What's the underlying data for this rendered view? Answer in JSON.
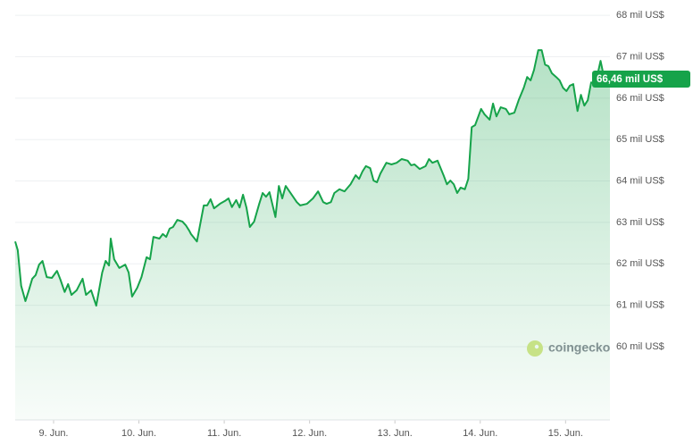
{
  "chart_data": {
    "type": "line",
    "color": "#16a34a",
    "grid": true,
    "watermark": "coingecko",
    "xlim": [
      8.55,
      15.52
    ],
    "ylim": [
      58.23,
      68.37
    ],
    "xticks": [
      {
        "value": 9,
        "label": "9. Jun."
      },
      {
        "value": 10,
        "label": "10. Jun."
      },
      {
        "value": 11,
        "label": "11. Jun."
      },
      {
        "value": 12,
        "label": "12. Jun."
      },
      {
        "value": 13,
        "label": "13. Jun."
      },
      {
        "value": 14,
        "label": "14. Jun."
      },
      {
        "value": 15,
        "label": "15. Jun."
      }
    ],
    "yticks": [
      {
        "value": 60,
        "label": "60 mil US$"
      },
      {
        "value": 61,
        "label": "61 mil US$"
      },
      {
        "value": 62,
        "label": "62 mil US$"
      },
      {
        "value": 63,
        "label": "63 mil US$"
      },
      {
        "value": 64,
        "label": "64 mil US$"
      },
      {
        "value": 65,
        "label": "65 mil US$"
      },
      {
        "value": 66,
        "label": "66 mil US$"
      },
      {
        "value": 67,
        "label": "67 mil US$"
      },
      {
        "value": 68,
        "label": "68 mil US$"
      }
    ],
    "last_price": {
      "value": 66.46,
      "label": "66,46 mil US$"
    },
    "x": [
      8.55,
      8.58,
      8.62,
      8.67,
      8.71,
      8.75,
      8.79,
      8.83,
      8.87,
      8.92,
      8.98,
      9.04,
      9.08,
      9.13,
      9.17,
      9.21,
      9.27,
      9.34,
      9.38,
      9.44,
      9.5,
      9.57,
      9.61,
      9.65,
      9.67,
      9.71,
      9.77,
      9.84,
      9.88,
      9.92,
      9.98,
      10.03,
      10.09,
      10.13,
      10.17,
      10.24,
      10.28,
      10.32,
      10.36,
      10.4,
      10.45,
      10.51,
      10.55,
      10.59,
      10.61,
      10.68,
      10.76,
      10.8,
      10.84,
      10.88,
      10.95,
      11.01,
      11.05,
      11.09,
      11.14,
      11.18,
      11.22,
      11.26,
      11.3,
      11.35,
      11.41,
      11.45,
      11.49,
      11.53,
      11.6,
      11.64,
      11.68,
      11.72,
      11.79,
      11.85,
      11.89,
      11.97,
      12.04,
      12.1,
      12.16,
      12.2,
      12.25,
      12.29,
      12.35,
      12.41,
      12.48,
      12.54,
      12.58,
      12.62,
      12.66,
      12.71,
      12.75,
      12.79,
      12.83,
      12.9,
      12.96,
      13.02,
      13.08,
      13.15,
      13.19,
      13.23,
      13.29,
      13.36,
      13.4,
      13.44,
      13.5,
      13.57,
      13.61,
      13.65,
      13.69,
      13.73,
      13.77,
      13.82,
      13.86,
      13.9,
      13.94,
      14.01,
      14.05,
      14.11,
      14.15,
      14.19,
      14.24,
      14.3,
      14.34,
      14.4,
      14.45,
      14.51,
      14.55,
      14.59,
      14.63,
      14.68,
      14.72,
      14.76,
      14.8,
      14.84,
      14.89,
      14.93,
      14.97,
      15.01,
      15.05,
      15.09,
      15.14,
      15.18,
      15.22,
      15.26,
      15.3,
      15.35,
      15.41,
      15.45,
      15.52
    ],
    "values": [
      62.54,
      62.33,
      61.47,
      61.1,
      61.36,
      61.64,
      61.73,
      61.98,
      62.07,
      61.68,
      61.66,
      61.83,
      61.62,
      61.32,
      61.51,
      61.25,
      61.36,
      61.64,
      61.25,
      61.36,
      60.99,
      61.79,
      62.07,
      61.96,
      62.61,
      62.11,
      61.9,
      61.98,
      61.79,
      61.21,
      61.42,
      61.68,
      62.16,
      62.11,
      62.65,
      62.61,
      62.72,
      62.65,
      62.85,
      62.89,
      63.06,
      63.02,
      62.93,
      62.8,
      62.72,
      62.54,
      63.41,
      63.41,
      63.56,
      63.34,
      63.45,
      63.52,
      63.58,
      63.37,
      63.54,
      63.36,
      63.67,
      63.36,
      62.89,
      63.02,
      63.45,
      63.71,
      63.62,
      63.73,
      63.13,
      63.88,
      63.58,
      63.88,
      63.67,
      63.49,
      63.41,
      63.45,
      63.58,
      63.75,
      63.49,
      63.45,
      63.49,
      63.71,
      63.8,
      63.75,
      63.92,
      64.14,
      64.05,
      64.23,
      64.36,
      64.31,
      64.01,
      63.97,
      64.18,
      64.44,
      64.4,
      64.44,
      64.53,
      64.49,
      64.38,
      64.4,
      64.29,
      64.36,
      64.53,
      64.44,
      64.49,
      64.14,
      63.92,
      64.01,
      63.92,
      63.71,
      63.84,
      63.8,
      64.05,
      65.3,
      65.35,
      65.74,
      65.61,
      65.48,
      65.87,
      65.56,
      65.78,
      65.74,
      65.61,
      65.65,
      65.95,
      66.25,
      66.51,
      66.43,
      66.68,
      67.16,
      67.16,
      66.81,
      66.77,
      66.6,
      66.51,
      66.43,
      66.25,
      66.17,
      66.3,
      66.34,
      65.69,
      66.08,
      65.82,
      65.95,
      66.38,
      66.34,
      66.9,
      66.51,
      66.46
    ]
  }
}
